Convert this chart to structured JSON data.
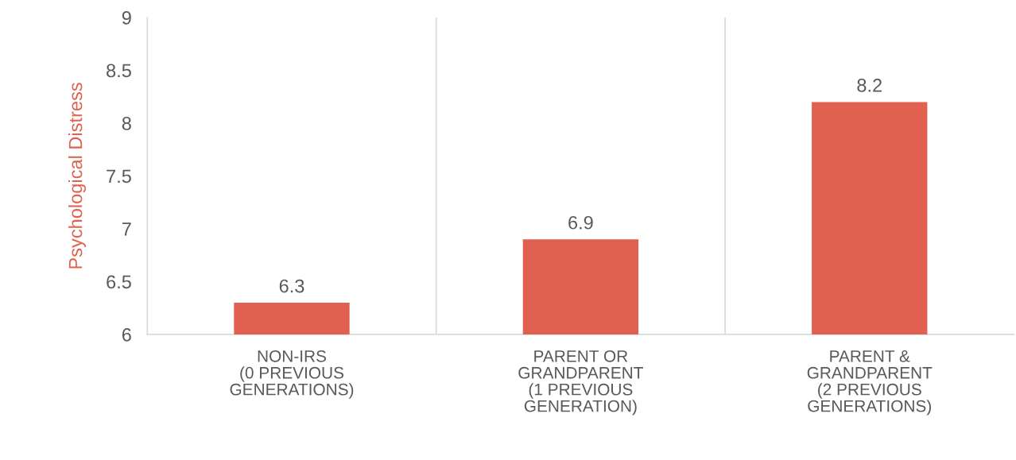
{
  "chart_data": {
    "type": "bar",
    "ylabel": "Psychological Distress",
    "categories": [
      "NON-IRS\n(0 PREVIOUS\nGENERATIONS)",
      "PARENT OR\nGRANDPARENT\n(1 PREVIOUS\nGENERATION)",
      "PARENT &\nGRANDPARENT\n(2 PREVIOUS\nGENERATIONS)"
    ],
    "values": [
      6.3,
      6.9,
      8.2
    ],
    "color": "#e0614f",
    "ylim": [
      6,
      9
    ],
    "yticks": [
      6,
      6.5,
      7,
      7.5,
      8,
      8.5,
      9
    ],
    "grid": "x",
    "data_labels": true,
    "legend": false
  }
}
